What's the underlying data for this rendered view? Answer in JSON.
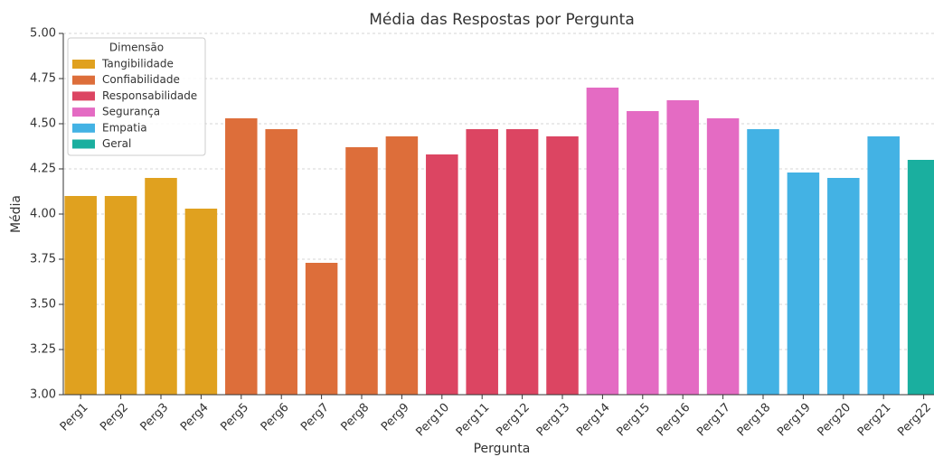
{
  "chart_data": {
    "type": "bar",
    "title": "Média das Respostas por Pergunta",
    "x_label": "Pergunta",
    "y_label": "Média",
    "legend_title": "Dimensão",
    "legend": "upper left",
    "grid": true,
    "categories": [
      "Perg1",
      "Perg2",
      "Perg3",
      "Perg4",
      "Perg5",
      "Perg6",
      "Perg7",
      "Perg8",
      "Perg9",
      "Perg10",
      "Perg11",
      "Perg12",
      "Perg13",
      "Perg14",
      "Perg15",
      "Perg16",
      "Perg17",
      "Perg18",
      "Perg19",
      "Perg20",
      "Perg21",
      "Perg22"
    ],
    "series": [
      {
        "name": "Tangibilidade",
        "color": "#e0a11f",
        "values": [
          4.1,
          4.1,
          4.2,
          4.03,
          null,
          null,
          null,
          null,
          null,
          null,
          null,
          null,
          null,
          null,
          null,
          null,
          null,
          null,
          null,
          null,
          null,
          null
        ]
      },
      {
        "name": "Confiabilidade",
        "color": "#dd6e3a",
        "values": [
          null,
          null,
          null,
          null,
          4.53,
          4.47,
          3.73,
          4.37,
          4.43,
          null,
          null,
          null,
          null,
          null,
          null,
          null,
          null,
          null,
          null,
          null,
          null,
          null
        ]
      },
      {
        "name": "Responsabilidade",
        "color": "#dc4562",
        "values": [
          null,
          null,
          null,
          null,
          null,
          null,
          null,
          null,
          null,
          4.33,
          4.47,
          4.47,
          4.43,
          null,
          null,
          null,
          null,
          null,
          null,
          null,
          null,
          null
        ]
      },
      {
        "name": "Segurança",
        "color": "#e46bc3",
        "values": [
          null,
          null,
          null,
          null,
          null,
          null,
          null,
          null,
          null,
          null,
          null,
          null,
          null,
          4.7,
          4.57,
          4.63,
          4.53,
          null,
          null,
          null,
          null,
          null
        ]
      },
      {
        "name": "Empatia",
        "color": "#43b2e4",
        "values": [
          null,
          null,
          null,
          null,
          null,
          null,
          null,
          null,
          null,
          null,
          null,
          null,
          null,
          null,
          null,
          null,
          null,
          4.47,
          4.23,
          4.2,
          4.43,
          null
        ]
      },
      {
        "name": "Geral",
        "color": "#1aaf9f",
        "values": [
          null,
          null,
          null,
          null,
          null,
          null,
          null,
          null,
          null,
          null,
          null,
          null,
          null,
          null,
          null,
          null,
          null,
          null,
          null,
          null,
          null,
          4.3
        ]
      }
    ],
    "ylim": [
      3.0,
      5.0
    ],
    "yticks": [
      {
        "value": 3.0,
        "label": "3.00"
      },
      {
        "value": 3.25,
        "label": "3.25"
      },
      {
        "value": 3.5,
        "label": "3.50"
      },
      {
        "value": 3.75,
        "label": "3.75"
      },
      {
        "value": 4.0,
        "label": "4.00"
      },
      {
        "value": 4.25,
        "label": "4.25"
      },
      {
        "value": 4.5,
        "label": "4.50"
      },
      {
        "value": 4.75,
        "label": "4.75"
      },
      {
        "value": 5.0,
        "label": "5.00"
      }
    ]
  }
}
